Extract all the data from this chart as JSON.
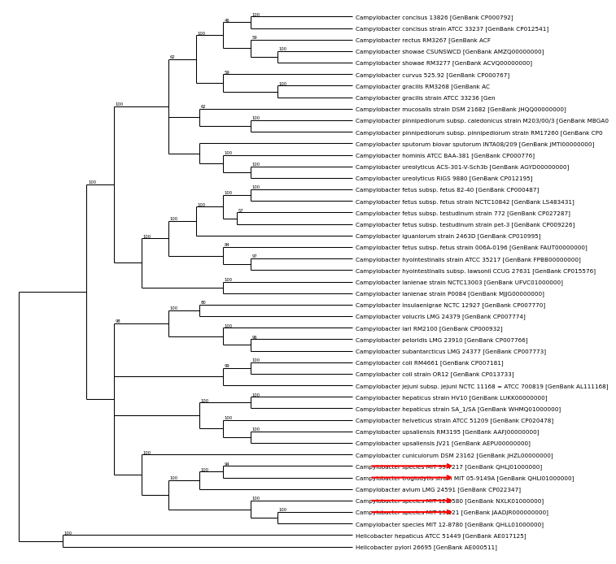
{
  "bg_color": "#ffffff",
  "arrow_color": "#ff0000",
  "taxa": [
    "Campylobacter concisus 13826 [GenBank CP000792]",
    "Campylobacter concisus strain ATCC 33237 [GenBank CP012541]",
    "Campylobacter rectus RM3267 [GenBank ACF",
    "Campylobacter showae CSUNSWCD [GenBank AMZQ00000000]",
    "Campylobacter showae RM3277 [GenBank ACVQ00000000]",
    "Campylobacter curvus 525.92 [GenBank CP000767]",
    "Campylobacter gracilis RM3268 [GenBank AC",
    "Campylobacter gracilis strain ATCC 33236 [Gen",
    "Campylobacter mucosalis strain DSM 21682 [GenBank JHQQ00000000]",
    "Campylobacter pinnipediorum subsp. caledonicus strain M203/00/3 [GenBank MBGA0",
    "Campylobacter pinnipediorum subsp. pinnipediorum strain RM17260 [GenBank CP0",
    "Campylobacter sputorum biovar sputorum INTA08/209 [GenBank JMTI00000000]",
    "Campylobacter hominis ATCC BAA-381 [GenBank CP000776]",
    "Campylobacter ureolyticus ACS-301-V-Sch3b [GenBank AGYD00000000]",
    "Campylobacter ureolyticus RIGS 9880 [GenBank CP012195]",
    "Campylobacter fetus subsp. fetus 82-40 [GenBank CP000487]",
    "Campylobacter fetus subsp. fetus strain NCTC10842 [GenBank LS483431]",
    "Campylobacter fetus subsp. testudinum strain 772 [GenBank CP027287]",
    "Campylobacter fetus subsp. testudinum strain pet-3 [GenBank CP009226]",
    "Campylobacter iguaniorum strain 2463D [GenBank CP010995]",
    "Campylobacter fetus subsp. fetus strain 006A-0196 [GenBank FAUT00000000]",
    "Campylobacter hyointestinalis strain ATCC 35217 [GenBank FPBB00000000]",
    "Campylobacter hyointestinalis subsp. lawsonii CCUG 27631 [GenBank CP015576]",
    "Campylobacter lanienae strain NCTC13003 [GenBank UFVC01000000]",
    "Campylobacter lanienae strain P0084 [GenBank MJJG00000000]",
    "Campylobacter insulaenigrae NCTC 12927 [GenBank CP007770]",
    "Campylobacter volucris LMG 24379 [GenBank CP007774]",
    "Campylobacter lari RM2100 [GenBank CP000932]",
    "Campylobacter peloridis LMG 23910 [GenBank CP007766]",
    "Campylobacter subantarcticus LMG 24377 [GenBank CP007773]",
    "Campylobacter coli RM4661 [GenBank CP007181]",
    "Campylobacter coli strain OR12 [GenBank CP013733]",
    "Campylobacter jejuni subsp. jejuni NCTC 11168 = ATCC 700819 [GenBank AL111168]",
    "Campylobacter hepaticus strain HV10 [GenBank LUKK00000000]",
    "Campylobacter hepaticus strain SA_1/SA [GenBank WHMQ01000000]",
    "Campylobacter helveticus strain ATCC 51209 [GenBank CP020478]",
    "Campylobacter upsaliensis RM3195 [GenBank AAFJ00000000]",
    "Campylobacter upsaliensis JV21 [GenBank AEPU00000000]",
    "Campylobacter cuniculorum DSM 23162 [GenBank JHZL00000000]",
    "Campylobacter species MIT 99-7217 [GenBank QHLJ01000000]",
    "Campylobacter troglodytis strain MIT 05-9149A [GenBank QHLI01000000]",
    "Campylobacter avium LMG 24591 [GenBank CP022347]",
    "Campylobacter species MIT 12-5580 [GenBank NXLK01000000]",
    "Campylobacter species MIT 19-121 [GenBank JAADJR000000000]",
    "Campylobacter species MIT 12-8780 [GenBank QHLL01000000]",
    "Helicobacter hepaticus ATCC 51449 [GenBank AE017125]",
    "Helicobacter pylori 26695 [GenBank AE000511]"
  ],
  "arrow_taxa_indices": [
    39,
    40,
    42,
    43
  ],
  "label_font_size": 5.2,
  "bootstrap_font_size": 3.8,
  "line_width": 0.75
}
